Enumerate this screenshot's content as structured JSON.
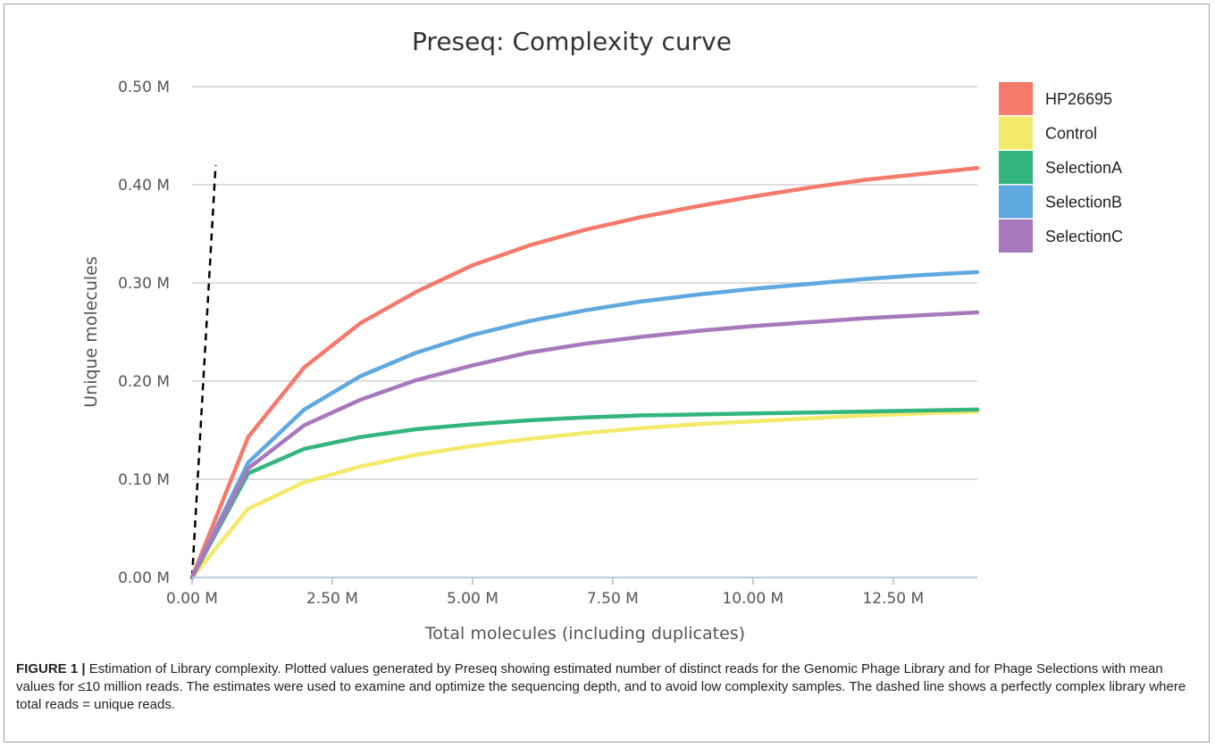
{
  "chart_data": {
    "type": "line",
    "title": "Preseq: Complexity curve",
    "xlabel": "Total molecules (including duplicates)",
    "ylabel": "Unique molecules",
    "xlim": [
      0,
      14.0
    ],
    "ylim": [
      0,
      0.5
    ],
    "x_ticks": [
      0,
      2.5,
      5,
      7.5,
      10,
      12.5
    ],
    "x_tick_labels": [
      "0.00 M",
      "2.50 M",
      "5.00 M",
      "7.50 M",
      "10.00 M",
      "12.50 M"
    ],
    "y_ticks": [
      0,
      0.1,
      0.2,
      0.3,
      0.4,
      0.5
    ],
    "y_tick_labels": [
      "0.00 M",
      "0.10 M",
      "0.20 M",
      "0.30 M",
      "0.40 M",
      "0.50 M"
    ],
    "grid": "horizontal",
    "legend_position": "right",
    "x": [
      0,
      1,
      2,
      3,
      4,
      5,
      6,
      7,
      8,
      9,
      10,
      11,
      12,
      13,
      14
    ],
    "series": [
      {
        "name": "HP26695",
        "color": "#f47a6b",
        "values": [
          0,
          0.143,
          0.214,
          0.259,
          0.291,
          0.318,
          0.338,
          0.354,
          0.367,
          0.378,
          0.388,
          0.397,
          0.405,
          0.411,
          0.417
        ]
      },
      {
        "name": "Control",
        "color": "#f3ea6b",
        "values": [
          0,
          0.07,
          0.097,
          0.113,
          0.125,
          0.134,
          0.141,
          0.147,
          0.152,
          0.156,
          0.159,
          0.162,
          0.165,
          0.167,
          0.169
        ]
      },
      {
        "name": "SelectionA",
        "color": "#33b57f",
        "values": [
          0,
          0.106,
          0.131,
          0.143,
          0.151,
          0.156,
          0.16,
          0.163,
          0.165,
          0.166,
          0.167,
          0.168,
          0.169,
          0.17,
          0.171
        ]
      },
      {
        "name": "SelectionB",
        "color": "#5fa8e0",
        "values": [
          0,
          0.117,
          0.171,
          0.205,
          0.229,
          0.247,
          0.261,
          0.272,
          0.281,
          0.288,
          0.294,
          0.299,
          0.304,
          0.308,
          0.311
        ]
      },
      {
        "name": "SelectionC",
        "color": "#a878bd",
        "values": [
          0,
          0.111,
          0.155,
          0.181,
          0.201,
          0.216,
          0.229,
          0.238,
          0.245,
          0.251,
          0.256,
          0.26,
          0.264,
          0.267,
          0.27
        ]
      }
    ],
    "reference_line": {
      "x": [
        0,
        0.42
      ],
      "y": [
        0,
        0.42
      ],
      "style": "dashed",
      "color": "#000000"
    }
  },
  "caption": {
    "label": "FIGURE 1 |",
    "text": " Estimation of Library complexity. Plotted values generated by Preseq showing estimated number of distinct reads for the Genomic Phage Library and for Phage Selections with mean values for ≤10 million reads. The estimates were used to examine and optimize the sequencing depth, and to avoid low complexity samples. The dashed line shows a perfectly complex library where total reads = unique reads."
  }
}
